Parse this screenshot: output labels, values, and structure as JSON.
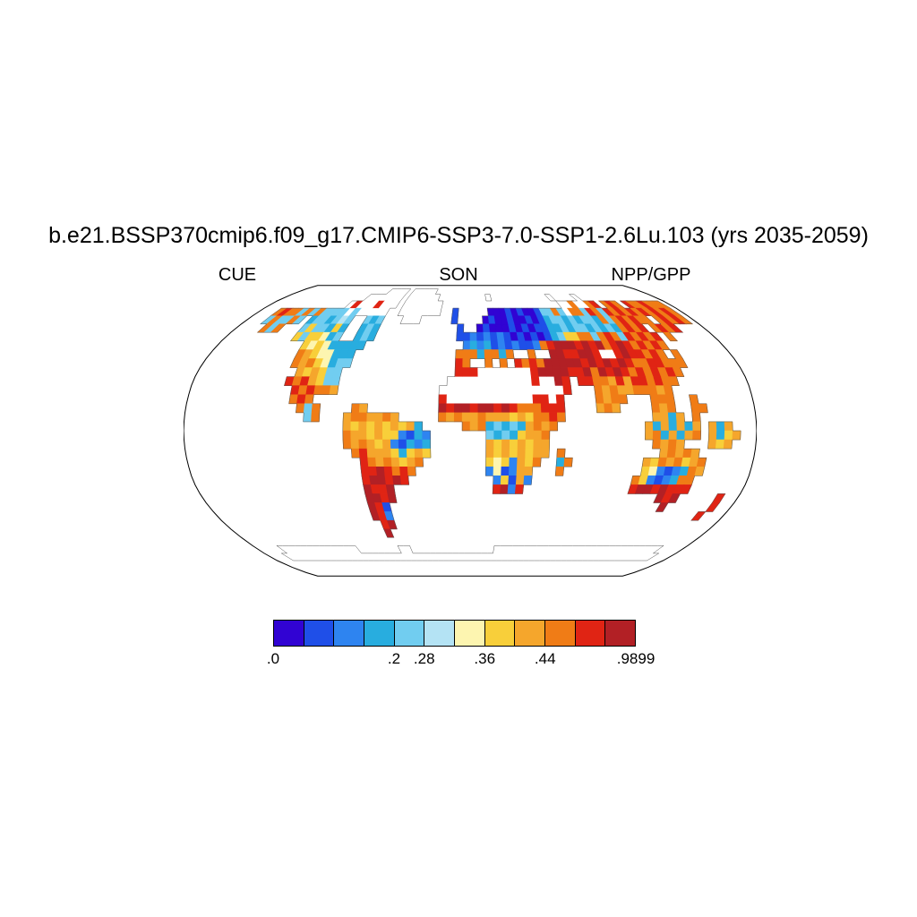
{
  "figure": {
    "title": "b.e21.BSSP370cmip6.f09_g17.CMIP6-SSP3-7.0-SSP1-2.6Lu.103 (yrs 2035-2059)",
    "subtitle_left": "CUE",
    "subtitle_center": "SON",
    "subtitle_right": "NPP/GPP"
  },
  "chart_data": {
    "type": "heatmap",
    "subtype": "global-map",
    "projection": "robinson",
    "title": "b.e21.BSSP370cmip6.f09_g17.CMIP6-SSP3-7.0-SSP1-2.6Lu.103 (yrs 2035-2059)",
    "labels": {
      "left": "CUE",
      "center": "SON",
      "right": "NPP/GPP"
    },
    "frame_color": "#000000",
    "coastline_color": "#555555",
    "ocean_color": "#ffffff",
    "colorbar": {
      "n_boxes": 12,
      "colors": [
        "#3103D3",
        "#1F4FE8",
        "#2E84F0",
        "#28ADDF",
        "#71CDF0",
        "#B4E3F4",
        "#FDF5B0",
        "#F8CF3A",
        "#F5A62C",
        "#F07C16",
        "#E02414",
        "#B22025"
      ],
      "ticks": [
        {
          "label": ".0",
          "boundary": 0
        },
        {
          "label": ".2",
          "boundary": 4
        },
        {
          "label": ".28",
          "boundary": 5
        },
        {
          "label": ".36",
          "boundary": 7
        },
        {
          "label": ".44",
          "boundary": 9
        },
        {
          "label": ".9899",
          "boundary": 12
        }
      ]
    },
    "grid": {
      "lon_min": -180,
      "lon_max": 180,
      "lat_min": -90,
      "lat_max": 90,
      "cell_deg": 5,
      "encoding": {
        ".": "ocean",
        "w": "land-no-data",
        "0-9ab": "colorbar bin index 0-11 (low CUE blue to high CUE dark red)"
      },
      "rows_rle": [
        [
          72
        ],
        [
          19,
          {
            "w": 4
          },
          1,
          {
            "w": 5
          },
          43
        ],
        [
          16,
          {
            "w": 7
          },
          1,
          {
            "w": 6
          },
          9,
          {
            "w": 1
          },
          11,
          {
            "w": 1
          },
          4,
          {
            "w": 1
          },
          15
        ],
        [
          14,
          "wawwwawww",
          1,
          {
            "w": 7
          },
          21,
          "ww9ww9a",
          1,
          "9a9",
          1,
          "a99a999",
          1
        ],
        [
          3,
          "9a9949494444w4wwwww",
          2,
          {
            "w": 7
          },
          2,
          "1",
          5,
          "0001010014494w994a94a9a9a9a9a9a9",
          1
        ],
        [
          3,
          "494494",
          1,
          "3443454",
          2,
          "434",
          3,
          "www",
          5,
          "1",
          4,
          "0100100101344343443949a9a99",
          1,
          "9a9a9",
          1
        ],
        [
          4,
          "949",
          3,
          "4744373",
          2,
          "343",
          12,
          "1",
          2,
          "010001010113",
          "3434434343",
          "9a9a",
          1,
          "9a9a",
          4
        ],
        [
          10,
          "7477634",
          2,
          "343",
          12,
          "1121212101010134779",
          "949a94a9a9a",
          1,
          "9",
          6
        ],
        [
          12,
          "767633333",
          1,
          13,
          "232312121129abbbabab9aba9a9a9",
          8
        ],
        [
          12,
          "98766333",
          14,
          "99939939",
          2,
          "9",
          2,
          "bbaabbawwaba",
          "a9a9",
          1,
          "9",
          7
        ],
        [
          12,
          "98976344",
          14,
          "a9",
          2,
          "9",
          1,
          "9",
          1,
          "a9a9bbbbbabababa99aa999",
          7
        ],
        [
          13,
          "878744",
          15,
          "aaawwwwwwwabbbbaab9baba9a9a9a9",
          8
        ],
        [
          12,
          "a9a8744",
          14,
          {
            "w": 11
          },
          "awwba",
          1,
          "aa998a8aa9a99",
          9
        ],
        [
          13,
          "a9a998",
          13,
          {
            "w": 12
          },
          "wwwwa",
          3,
          "9898899989",
          10
        ],
        [
          13,
          "9a9",
          16,
          "a",
          {
            "w": 11
          },
          "aawa",
          4,
          "9899",
          3,
          "999",
          2,
          "9",
          7
        ],
        [
          14,
          "949",
          4,
          "98",
          9,
          "babbabbaba999aaa",
          4,
          "898",
          4,
          "989",
          2,
          "99",
          6
        ],
        [
          15,
          "49",
          3,
          "8998898",
          5,
          "98988988878799a9",
          11,
          "8838",
          1,
          "9",
          7
        ],
        [
          20,
          "8787878783",
          5,
          "989343438989",
          11,
          "8383838",
          1,
          "838",
          3
        ],
        [
          20,
          "98878772132",
          7,
          "43437889",
          12,
          "8938389",
          1,
          "8378",
          2
        ],
        [
          20,
          "98987821323",
          7,
          "87878788",
          13,
          "9898",
          3,
          "878",
          3
        ],
        [
          21,
          "9a88873787",
          7,
          "87878788",
          1,
          "9",
          12,
          "89898",
          7
        ],
        [
          22,
          "a9898789",
          8,
          "7672879",
          2,
          "39",
          9,
          "87989789",
          6
        ],
        [
          22,
          "aaba9a9",
          9,
          "261288",
          3,
          "9",
          10,
          "76212398",
          6
        ],
        [
          22,
          "abbaba",
          11,
          "27182",
          13,
          "97212399",
          7
        ],
        [
          22,
          "baab",
          13,
          "ab2a",
          14,
          "abbabaaa",
          7
        ],
        [
          22,
          "bbab",
          35,
          "bab",
          5,
          "a",
          2
        ],
        [
          22,
          "ba1",
          37,
          "b",
          6,
          "a",
          2
        ],
        [
          22,
          "ba2",
          43,
          "a",
          3
        ],
        [
          23,
          "ab",
          47
        ],
        [
          23,
          "b",
          48
        ],
        [
          72
        ],
        [
          4,
          {
            "w": 13
          },
          7,
          {
            "w": 2
          },
          14,
          {
            "w": 28
          },
          4
        ],
        [
          3,
          {
            "w": 66
          },
          3
        ],
        [
          72
        ],
        [
          72
        ],
        [
          72
        ]
      ]
    }
  }
}
